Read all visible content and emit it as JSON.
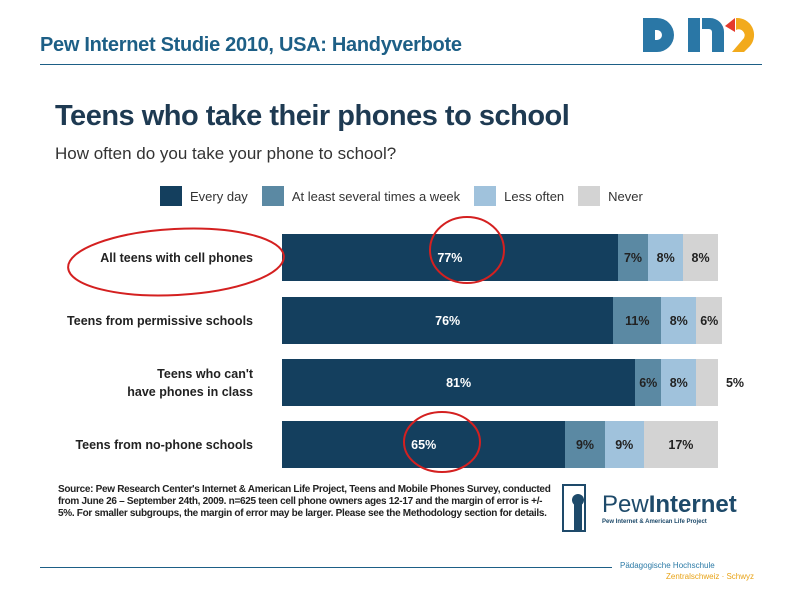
{
  "header": {
    "title": "Pew Internet  Studie  2010, USA: Handyverbote",
    "logo_text": "PHZ"
  },
  "chart_data": {
    "type": "bar",
    "orientation": "horizontal-stacked",
    "title": "Teens who take their phones to school",
    "subtitle": "How often do you take your phone to school?",
    "legend_position": "top",
    "categories": [
      [
        "All teens with cell phones"
      ],
      [
        "Teens from permissive schools"
      ],
      [
        "Teens who can't",
        "have phones in class"
      ],
      [
        "Teens from no-phone schools"
      ]
    ],
    "series": [
      {
        "name": "Every day",
        "color": "#143f5e",
        "values": [
          77,
          76,
          81,
          65
        ]
      },
      {
        "name": "At least several times a week",
        "color": "#5b89a3",
        "values": [
          7,
          11,
          6,
          9
        ]
      },
      {
        "name": "Less often",
        "color": "#a0c2dc",
        "values": [
          8,
          8,
          8,
          9
        ]
      },
      {
        "name": "Never",
        "color": "#d3d3d3",
        "values": [
          8,
          6,
          5,
          17
        ]
      }
    ],
    "annotations": [
      "red circle: All teens with cell phones",
      "red circle: 77%",
      "red circle: 65%"
    ]
  },
  "source": "Source: Pew Research Center's Internet & American Life Project, Teens and Mobile Phones Survey, conducted from June 26 – September 24th, 2009. n=625 teen cell phone owners ages 12-17 and the margin of error is +/- 5%. For smaller subgroups, the margin of error may be larger. Please see the Methodology section for details.",
  "pew_logo": {
    "name_light": "Pew",
    "name_bold": "Internet",
    "sub": "Pew Internet & American Life Project"
  },
  "footer": {
    "line1": "Pädagogische Hochschule",
    "line2": "Zentralschweiz · Schwyz"
  }
}
